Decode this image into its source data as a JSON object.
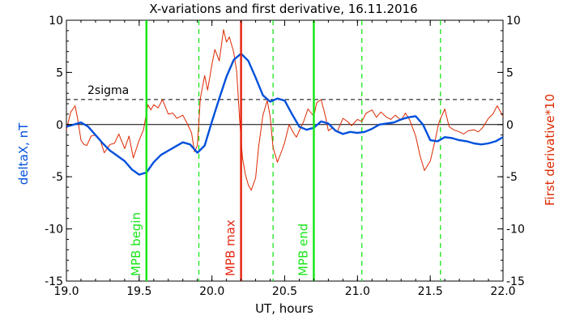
{
  "chart_data": {
    "type": "line",
    "title": "X-variations and first derivative, 16.11.2016",
    "xlabel": "UT, hours",
    "ylabel_left": "deltaX, nT",
    "ylabel_right": "First derivative*10",
    "xlim": [
      19.0,
      22.0
    ],
    "ylim": [
      -15,
      10
    ],
    "xticks": [
      19.0,
      19.5,
      20.0,
      20.5,
      21.0,
      21.5,
      22.0
    ],
    "xtick_labels": [
      "19.0",
      "19.5",
      "20.0",
      "20.5",
      "21.0",
      "21.5",
      "22.0"
    ],
    "yticks": [
      -15,
      -10,
      -5,
      0,
      5,
      10
    ],
    "ytick_labels": [
      "-15",
      "-10",
      "-5",
      "0",
      "5",
      "10"
    ],
    "colors": {
      "deltaX": "#0050dc",
      "derivative": "#dc2800",
      "mpb": "#19e619",
      "max": "#e62814",
      "sigma": "#000000"
    },
    "sigma": {
      "label": "2sigma",
      "value": 2.4
    },
    "markers": [
      {
        "label": "MPB begin",
        "x": 19.55,
        "color": "#19e619",
        "style": "solid"
      },
      {
        "label": "MPB max",
        "x": 20.2,
        "color": "#e62814",
        "style": "solid"
      },
      {
        "label": "MPB end",
        "x": 20.7,
        "color": "#19e619",
        "style": "solid"
      }
    ],
    "dashed_lines": [
      19.91,
      20.42,
      21.03,
      21.57
    ],
    "series": [
      {
        "key": "deltaX",
        "color": "#0050dc",
        "x": [
          19.0,
          19.05,
          19.1,
          19.15,
          19.2,
          19.25,
          19.3,
          19.35,
          19.4,
          19.45,
          19.5,
          19.55,
          19.6,
          19.65,
          19.7,
          19.75,
          19.8,
          19.85,
          19.9,
          19.95,
          20.0,
          20.05,
          20.1,
          20.15,
          20.2,
          20.25,
          20.3,
          20.35,
          20.4,
          20.45,
          20.5,
          20.55,
          20.6,
          20.65,
          20.7,
          20.75,
          20.8,
          20.85,
          20.9,
          20.95,
          21.0,
          21.05,
          21.1,
          21.15,
          21.2,
          21.25,
          21.3,
          21.35,
          21.4,
          21.45,
          21.5,
          21.55,
          21.6,
          21.65,
          21.7,
          21.75,
          21.8,
          21.85,
          21.9,
          21.95,
          22.0
        ],
        "y": [
          -0.2,
          0.0,
          0.2,
          -0.2,
          -1.0,
          -1.8,
          -2.5,
          -3.0,
          -3.5,
          -4.3,
          -4.8,
          -4.6,
          -3.6,
          -2.9,
          -2.5,
          -2.1,
          -1.7,
          -1.9,
          -2.7,
          -2.0,
          0.3,
          2.5,
          4.6,
          6.2,
          6.8,
          6.1,
          4.5,
          2.8,
          2.2,
          2.5,
          2.3,
          1.0,
          -0.2,
          -0.5,
          -0.3,
          0.3,
          0.1,
          -0.6,
          -0.9,
          -0.7,
          -0.8,
          -0.7,
          -0.4,
          0.0,
          0.1,
          0.2,
          0.5,
          0.7,
          0.8,
          0.0,
          -1.5,
          -1.6,
          -1.2,
          -1.3,
          -1.5,
          -1.6,
          -1.8,
          -1.9,
          -1.8,
          -1.6,
          -1.2
        ]
      },
      {
        "key": "derivative",
        "color": "#dc2800",
        "x": [
          19.0,
          19.03,
          19.06,
          19.08,
          19.1,
          19.12,
          19.14,
          19.17,
          19.2,
          19.23,
          19.26,
          19.3,
          19.33,
          19.36,
          19.4,
          19.43,
          19.46,
          19.5,
          19.53,
          19.56,
          19.58,
          19.6,
          19.63,
          19.66,
          19.7,
          19.73,
          19.76,
          19.8,
          19.83,
          19.86,
          19.88,
          19.9,
          19.92,
          19.95,
          19.97,
          20.0,
          20.02,
          20.05,
          20.08,
          20.1,
          20.12,
          20.15,
          20.17,
          20.19,
          20.21,
          20.23,
          20.25,
          20.27,
          20.3,
          20.32,
          20.35,
          20.38,
          20.4,
          20.42,
          20.45,
          20.48,
          20.5,
          20.53,
          20.56,
          20.58,
          20.6,
          20.63,
          20.66,
          20.7,
          20.72,
          20.75,
          20.78,
          20.8,
          20.83,
          20.86,
          20.9,
          20.93,
          20.96,
          21.0,
          21.03,
          21.06,
          21.1,
          21.13,
          21.16,
          21.2,
          21.23,
          21.26,
          21.3,
          21.33,
          21.36,
          21.4,
          21.43,
          21.46,
          21.5,
          21.53,
          21.56,
          21.6,
          21.63,
          21.66,
          21.7,
          21.73,
          21.76,
          21.8,
          21.83,
          21.86,
          21.9,
          21.93,
          21.96,
          22.0
        ],
        "y": [
          -0.5,
          1.2,
          1.8,
          0.3,
          -1.5,
          -1.9,
          -2.0,
          -1.1,
          -1.0,
          -1.4,
          -2.7,
          -1.9,
          -1.8,
          -0.9,
          -2.3,
          -1.1,
          -3.2,
          -1.5,
          -0.5,
          1.9,
          1.4,
          1.9,
          1.6,
          2.4,
          1.0,
          1.1,
          0.6,
          0.9,
          0.1,
          -0.8,
          -2.6,
          -2.0,
          2.5,
          4.7,
          3.3,
          5.8,
          7.2,
          6.1,
          9.1,
          7.9,
          8.4,
          6.9,
          5.1,
          0.5,
          -3.2,
          -4.8,
          -5.8,
          -6.3,
          -5.1,
          -2.2,
          0.9,
          2.3,
          0.8,
          -2.2,
          -3.6,
          -2.5,
          -1.7,
          0.0,
          -0.8,
          -1.2,
          -0.6,
          0.3,
          1.5,
          0.8,
          2.1,
          2.4,
          0.8,
          -0.6,
          -0.3,
          -0.7,
          0.6,
          0.3,
          -0.1,
          0.5,
          0.3,
          1.1,
          1.4,
          0.7,
          1.2,
          0.7,
          0.5,
          0.9,
          0.4,
          1.1,
          0.4,
          -1.1,
          -3.0,
          -4.4,
          -3.5,
          -1.7,
          0.2,
          1.5,
          -0.2,
          -0.5,
          -0.7,
          -0.9,
          -0.6,
          -0.5,
          -0.7,
          -0.3,
          0.6,
          1.0,
          1.8,
          0.8
        ]
      }
    ]
  }
}
